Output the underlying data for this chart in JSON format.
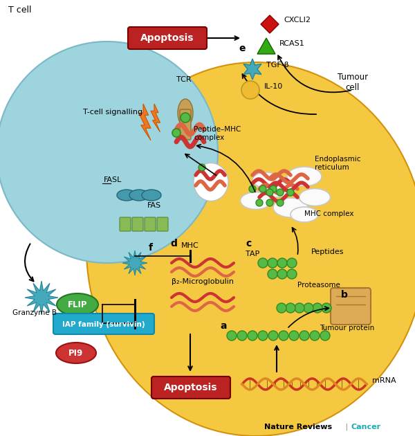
{
  "bg_color": "#ffffff",
  "tcell_color": "#9dd4de",
  "tcell_edge": "#7ab8c8",
  "tumour_color": "#f5c842",
  "tumour_edge": "#d4920a",
  "apoptosis_box_color": "#bb2222",
  "apoptosis_text": "Apoptosis",
  "flip_color": "#44aa44",
  "flip_edge": "#227722",
  "iap_color": "#22aacc",
  "iap_edge": "#1188aa",
  "pi9_color": "#cc3333",
  "pi9_edge": "#991111",
  "nature_reviews_text": "Nature Reviews",
  "cancer_text": "Cancer",
  "cancer_color": "#1aacb0",
  "label_tcell": "T cell",
  "label_tumour": "Tumour\ncell",
  "label_tcell_signalling": "T-cell signalling",
  "label_tcr": "TCR",
  "label_fasl": "FASL",
  "label_fas": "FAS",
  "label_granzyme": "Granzyme B",
  "label_flip": "FLIP",
  "label_iap": "IAP family (survivin)",
  "label_pi9": "PI9",
  "label_peptide_mhc": "Peptide–MHC\ncomplex",
  "label_er": "Endoplasmic\nreticulum",
  "label_mhc_complex": "MHC complex",
  "label_tap": "TAP",
  "label_peptides": "Peptides",
  "label_proteasome": "Proteasome",
  "label_tumour_protein": "Tumour protein",
  "label_mrna": "mRNA",
  "label_mhc": "MHC",
  "label_b2m": "β₂-Microglobulin",
  "label_cxcl": "CXCLI2",
  "label_rcas": "RCAS1",
  "label_tgfb": "TGF-β",
  "label_il10": "IL-10",
  "label_a": "a",
  "label_b": "b",
  "label_c": "c",
  "label_d": "d",
  "label_e": "e",
  "label_f": "f",
  "green_bead": "#55bb44",
  "green_bead_edge": "#338822",
  "orange_bolt": "#ee7722",
  "orange_bolt_edge": "#cc5500",
  "teal_star": "#44aabb",
  "teal_star_edge": "#228899",
  "red_diamond": "#cc1111",
  "green_triangle": "#33aa11",
  "yellow_circle": "#eebb33",
  "fasl_color": "#4499aa",
  "fasl_edge": "#226677",
  "fas_color": "#88bb55",
  "fas_edge": "#558833",
  "tcr_color": "#cc8844",
  "mhc_helix1": "#cc3333",
  "mhc_helix2": "#dd6644",
  "dna_color1": "#cc3322",
  "dna_color2": "#dd8822",
  "mrna_color1": "#cc3322",
  "mrna_color2": "#dd8822",
  "proteasome_color": "#ddaa55",
  "proteasome_edge": "#aa7733"
}
